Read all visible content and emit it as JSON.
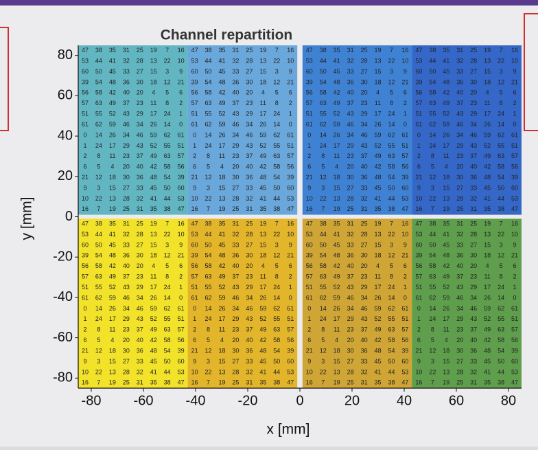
{
  "chart_data": {
    "type": "channel-map",
    "title": "Channel repartition",
    "xlabel": "x [mm]",
    "ylabel": "y [mm]",
    "xlim": [
      -85,
      85
    ],
    "ylim": [
      -85,
      85
    ],
    "xticks": [
      -80,
      -60,
      -40,
      -20,
      0,
      20,
      40,
      60,
      80
    ],
    "yticks": [
      -80,
      -60,
      -40,
      -20,
      0,
      20,
      40,
      60,
      80
    ],
    "channels": [
      [
        47,
        38,
        35,
        31,
        25,
        19,
        7,
        16
      ],
      [
        53,
        44,
        41,
        32,
        28,
        13,
        22,
        10
      ],
      [
        60,
        50,
        45,
        33,
        27,
        15,
        3,
        9
      ],
      [
        39,
        54,
        48,
        36,
        30,
        18,
        12,
        21
      ],
      [
        56,
        58,
        42,
        40,
        20,
        4,
        5,
        6
      ],
      [
        57,
        63,
        49,
        37,
        23,
        11,
        8,
        2
      ],
      [
        51,
        55,
        52,
        43,
        29,
        17,
        24,
        1
      ],
      [
        61,
        62,
        59,
        46,
        34,
        26,
        14,
        0
      ],
      [
        0,
        14,
        26,
        34,
        46,
        59,
        62,
        61
      ],
      [
        1,
        24,
        17,
        29,
        43,
        52,
        55,
        51
      ],
      [
        2,
        8,
        11,
        23,
        37,
        49,
        63,
        57
      ],
      [
        6,
        5,
        4,
        20,
        40,
        42,
        58,
        56
      ],
      [
        21,
        12,
        18,
        30,
        36,
        48,
        54,
        39
      ],
      [
        9,
        3,
        15,
        27,
        33,
        45,
        50,
        60
      ],
      [
        10,
        22,
        13,
        28,
        32,
        41,
        44,
        53
      ],
      [
        16,
        7,
        19,
        25,
        31,
        35,
        38,
        47
      ]
    ],
    "blocks": [
      {
        "color": "#f2e22a",
        "xlim": [
          -85,
          -43
        ],
        "ylim": [
          -85,
          -1
        ]
      },
      {
        "color": "#e3b52a",
        "xlim": [
          -43,
          -1
        ],
        "ylim": [
          -85,
          -1
        ]
      },
      {
        "color": "#cfa535",
        "xlim": [
          1,
          43
        ],
        "ylim": [
          -85,
          -1
        ]
      },
      {
        "color": "#5f9e4c",
        "xlim": [
          43,
          85
        ],
        "ylim": [
          -85,
          -1
        ]
      },
      {
        "color": "#62b6c2",
        "xlim": [
          -85,
          -43
        ],
        "ylim": [
          1,
          85
        ]
      },
      {
        "color": "#6aa7da",
        "xlim": [
          -43,
          -1
        ],
        "ylim": [
          1,
          85
        ]
      },
      {
        "color": "#3f82d4",
        "xlim": [
          1,
          43
        ],
        "ylim": [
          1,
          85
        ]
      },
      {
        "color": "#3467c8",
        "xlim": [
          43,
          85
        ],
        "ylim": [
          1,
          85
        ]
      }
    ]
  }
}
